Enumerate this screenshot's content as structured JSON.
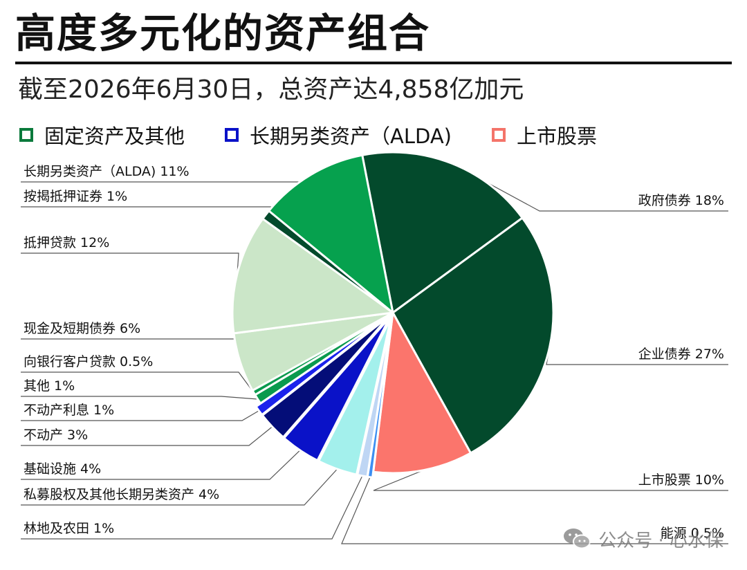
{
  "title": "高度多元化的资产组合",
  "subtitle": "截至2026年6月30日，总资产达4,858亿加元",
  "legend": [
    {
      "label": "固定资产及其他",
      "color": "#0b7a3c"
    },
    {
      "label": "长期另类资产（ALDA)",
      "color": "#0a12c8"
    },
    {
      "label": "上市股票",
      "color": "#f4746a"
    }
  ],
  "watermark": {
    "text": "公众号 · 心水保",
    "icon": "wechat-icon"
  },
  "chart_data": {
    "type": "pie",
    "title": "",
    "slices": [
      {
        "name": "政府债券",
        "value": 18,
        "label": "政府债券 18%",
        "color": "#034a2c",
        "group": "固定资产及其他"
      },
      {
        "name": "企业债券",
        "value": 27,
        "label": "企业债券 27%",
        "color": "#034a2c",
        "group": "固定资产及其他"
      },
      {
        "name": "上市股票",
        "value": 10,
        "label": "上市股票 10%",
        "color": "#fb756c",
        "group": "上市股票"
      },
      {
        "name": "能源",
        "value": 0.5,
        "label": "能源 0.5%",
        "color": "#3d8ff2",
        "group": "长期另类资产（ALDA)"
      },
      {
        "name": "林地及农田",
        "value": 1,
        "label": "林地及农田 1%",
        "color": "#bfd6f4",
        "group": "长期另类资产（ALDA)"
      },
      {
        "name": "私募股权及其他长期另类资产",
        "value": 4,
        "label": "私募股权及其他长期另类资产 4%",
        "color": "#a3f0ec",
        "group": "长期另类资产（ALDA)"
      },
      {
        "name": "基础设施",
        "value": 4,
        "label": "基础设施 4%",
        "color": "#0a12c8",
        "group": "长期另类资产（ALDA)"
      },
      {
        "name": "不动产",
        "value": 3,
        "label": "不动产 3%",
        "color": "#040d78",
        "group": "长期另类资产（ALDA)"
      },
      {
        "name": "不动产利息",
        "value": 1,
        "label": "不动产利息 1%",
        "color": "#1a22ec",
        "group": "长期另类资产（ALDA)"
      },
      {
        "name": "其他",
        "value": 1,
        "label": "其他 1%",
        "color": "#0a9a4e",
        "group": "固定资产及其他"
      },
      {
        "name": "向银行客户贷款",
        "value": 0.5,
        "label": "向银行客户贷款 0.5%",
        "color": "#0a9a4e",
        "group": "固定资产及其他"
      },
      {
        "name": "现金及短期债券",
        "value": 6,
        "label": "现金及短期债券 6%",
        "color": "#cbe6c8",
        "group": "固定资产及其他"
      },
      {
        "name": "抵押贷款",
        "value": 12,
        "label": "抵押贷款 12%",
        "color": "#cbe6c8",
        "group": "固定资产及其他"
      },
      {
        "name": "按揭抵押证券",
        "value": 1,
        "label": "按揭抵押证券 1%",
        "color": "#034a2c",
        "group": "固定资产及其他"
      },
      {
        "name": "长期另类资产（ALDA)",
        "value": 11,
        "label": "长期另类资产（ALDA) 11%",
        "color": "#06a14e",
        "group": "固定资产及其他"
      }
    ]
  }
}
